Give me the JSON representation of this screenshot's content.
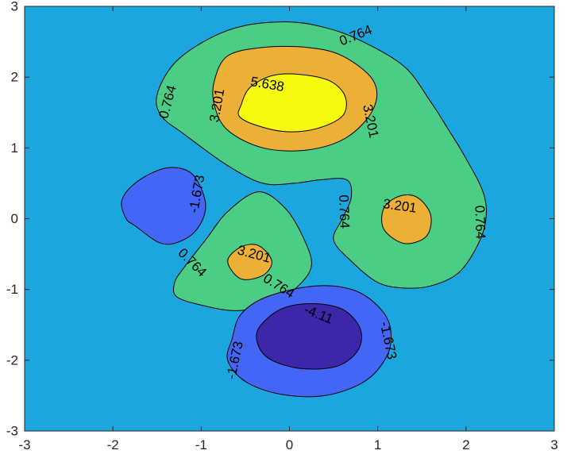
{
  "chart_data": {
    "type": "filled-contour",
    "xlim": [
      -3,
      3
    ],
    "ylim": [
      -3,
      3
    ],
    "xticks": [
      -3,
      -2,
      -1,
      0,
      1,
      2,
      3
    ],
    "yticks": [
      -3,
      -2,
      -1,
      0,
      1,
      2,
      3
    ],
    "levels": [
      -4.11,
      -1.673,
      0.764,
      3.201,
      5.638
    ],
    "colors": {
      "background": "#1ca6df",
      "-4.11": "#3e26a8",
      "-1.673": "#4466f6",
      "0.764": "#4bcd86",
      "3.201": "#ebb035",
      "5.638": "#f7fa0f"
    },
    "regions": [
      {
        "level": 0.764,
        "points": [
          [
            -0.9,
            2.55
          ],
          [
            -0.5,
            2.73
          ],
          [
            0,
            2.78
          ],
          [
            0.4,
            2.7
          ],
          [
            0.8,
            2.52
          ],
          [
            1.3,
            2.15
          ],
          [
            1.6,
            1.65
          ],
          [
            1.78,
            1.3
          ],
          [
            2,
            0.85
          ],
          [
            2.2,
            0.35
          ],
          [
            2.22,
            -0.05
          ],
          [
            2.1,
            -0.45
          ],
          [
            1.9,
            -0.78
          ],
          [
            1.6,
            -0.95
          ],
          [
            1.3,
            -0.98
          ],
          [
            1,
            -0.9
          ],
          [
            0.7,
            -0.6
          ],
          [
            0.5,
            -0.3
          ],
          [
            0.6,
            0
          ],
          [
            0.7,
            0.3
          ],
          [
            0.65,
            0.55
          ],
          [
            0.35,
            0.55
          ],
          [
            0.05,
            0.5
          ],
          [
            -0.3,
            0.5
          ],
          [
            -0.7,
            0.75
          ],
          [
            -1.2,
            1.2
          ],
          [
            -1.45,
            1.45
          ],
          [
            -1.5,
            1.75
          ],
          [
            -1.3,
            2.2
          ]
        ]
      },
      {
        "level": 0.764,
        "points": [
          [
            -0.35,
            0.38
          ],
          [
            -0.7,
            0.1
          ],
          [
            -0.95,
            -0.3
          ],
          [
            -1.2,
            -0.7
          ],
          [
            -1.3,
            -0.9
          ],
          [
            -1.28,
            -1.1
          ],
          [
            -1,
            -1.22
          ],
          [
            -0.6,
            -1.3
          ],
          [
            -0.2,
            -1.2
          ],
          [
            0.1,
            -0.95
          ],
          [
            0.25,
            -0.65
          ],
          [
            0.15,
            -0.25
          ],
          [
            -0.05,
            0.15
          ]
        ]
      },
      {
        "level": 3.201,
        "points": [
          [
            -0.85,
            1.95
          ],
          [
            -0.7,
            2.3
          ],
          [
            -0.3,
            2.42
          ],
          [
            0.2,
            2.42
          ],
          [
            0.6,
            2.3
          ],
          [
            0.95,
            1.95
          ],
          [
            0.95,
            1.55
          ],
          [
            0.65,
            1.15
          ],
          [
            0.2,
            0.97
          ],
          [
            -0.3,
            1
          ],
          [
            -0.7,
            1.25
          ],
          [
            -0.85,
            1.6
          ]
        ]
      },
      {
        "level": 3.201,
        "points": [
          [
            1.3,
            -0.35
          ],
          [
            1.55,
            -0.25
          ],
          [
            1.6,
            0.05
          ],
          [
            1.45,
            0.3
          ],
          [
            1.25,
            0.32
          ],
          [
            1.07,
            0.15
          ],
          [
            1.07,
            -0.15
          ]
        ]
      },
      {
        "level": 3.201,
        "points": [
          [
            -0.55,
            -0.85
          ],
          [
            -0.3,
            -0.8
          ],
          [
            -0.2,
            -0.6
          ],
          [
            -0.35,
            -0.38
          ],
          [
            -0.55,
            -0.4
          ],
          [
            -0.7,
            -0.6
          ]
        ]
      },
      {
        "level": 5.638,
        "points": [
          [
            -0.55,
            1.6
          ],
          [
            -0.45,
            1.85
          ],
          [
            -0.2,
            2.02
          ],
          [
            0.1,
            2.04
          ],
          [
            0.45,
            1.95
          ],
          [
            0.63,
            1.73
          ],
          [
            0.6,
            1.45
          ],
          [
            0.3,
            1.27
          ],
          [
            -0.05,
            1.23
          ],
          [
            -0.4,
            1.33
          ],
          [
            -0.57,
            1.45
          ]
        ]
      },
      {
        "level": -1.673,
        "points": [
          [
            -1.75,
            -0.1
          ],
          [
            -1.45,
            -0.35
          ],
          [
            -1.2,
            -0.3
          ],
          [
            -1.02,
            -0.1
          ],
          [
            -0.95,
            0.2
          ],
          [
            -1.05,
            0.55
          ],
          [
            -1.2,
            0.7
          ],
          [
            -1.45,
            0.7
          ],
          [
            -1.75,
            0.5
          ],
          [
            -1.9,
            0.25
          ],
          [
            -1.85,
            0
          ]
        ]
      },
      {
        "level": -1.673,
        "points": [
          [
            -0.65,
            -1.7
          ],
          [
            -0.55,
            -1.35
          ],
          [
            -0.25,
            -1.1
          ],
          [
            0.3,
            -0.95
          ],
          [
            0.75,
            -1.02
          ],
          [
            1.05,
            -1.3
          ],
          [
            1.15,
            -1.6
          ],
          [
            1.1,
            -1.95
          ],
          [
            0.85,
            -2.3
          ],
          [
            0.4,
            -2.5
          ],
          [
            -0.1,
            -2.48
          ],
          [
            -0.5,
            -2.3
          ],
          [
            -0.7,
            -2
          ]
        ]
      },
      {
        "level": -4.11,
        "points": [
          [
            -0.35,
            -1.55
          ],
          [
            -0.1,
            -1.28
          ],
          [
            0.25,
            -1.2
          ],
          [
            0.6,
            -1.28
          ],
          [
            0.8,
            -1.55
          ],
          [
            0.78,
            -1.85
          ],
          [
            0.55,
            -2.08
          ],
          [
            0.15,
            -2.12
          ],
          [
            -0.2,
            -2
          ],
          [
            -0.35,
            -1.8
          ]
        ]
      }
    ],
    "contour_labels": [
      {
        "text": "0.764",
        "x": 0.75,
        "y": 2.59,
        "angle": 22
      },
      {
        "text": "0.764",
        "x": -1.38,
        "y": 1.65,
        "angle": 75
      },
      {
        "text": "0.764",
        "x": 0.62,
        "y": 0.1,
        "angle": -88
      },
      {
        "text": "0.764",
        "x": 2.16,
        "y": -0.05,
        "angle": -88
      },
      {
        "text": "0.764",
        "x": -1.1,
        "y": -0.62,
        "angle": -45
      },
      {
        "text": "0.764",
        "x": -0.12,
        "y": -0.95,
        "angle": -32
      },
      {
        "text": "5.638",
        "x": -0.25,
        "y": 1.9,
        "angle": -10
      },
      {
        "text": "3.201",
        "x": -0.82,
        "y": 1.6,
        "angle": 80
      },
      {
        "text": "3.201",
        "x": 0.92,
        "y": 1.38,
        "angle": -78
      },
      {
        "text": "3.201",
        "x": 1.25,
        "y": 0.18,
        "angle": -8
      },
      {
        "text": "3.201",
        "x": -0.4,
        "y": -0.5,
        "angle": -15
      },
      {
        "text": "-1.673",
        "x": -1.05,
        "y": 0.35,
        "angle": 80
      },
      {
        "text": "-4.11",
        "x": 0.33,
        "y": -1.35,
        "angle": -22
      },
      {
        "text": "-1.673",
        "x": 1.12,
        "y": -1.72,
        "angle": -78
      },
      {
        "text": "-1.673",
        "x": -0.62,
        "y": -2.0,
        "angle": 78
      }
    ]
  }
}
